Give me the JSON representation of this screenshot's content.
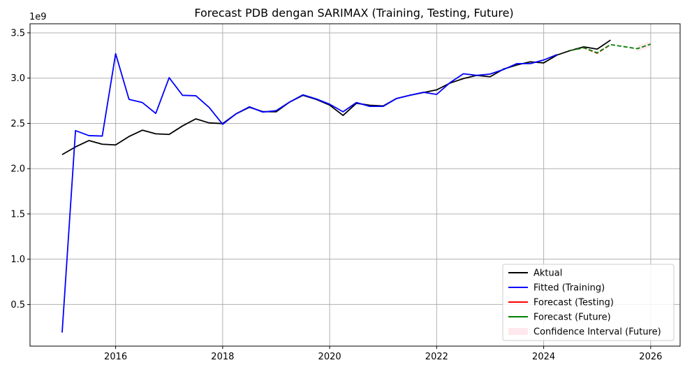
{
  "chart_data": {
    "type": "line",
    "title": "Forecast PDB dengan SARIMAX (Training, Testing, Future)",
    "xlabel": "",
    "ylabel": "",
    "y_scale_label": "1e9",
    "xlim": [
      2014.4,
      2026.55
    ],
    "ylim": [
      0.04,
      3.6
    ],
    "x_ticks": [
      2016,
      2018,
      2020,
      2022,
      2024,
      2026
    ],
    "x_tick_labels": [
      "2016",
      "2018",
      "2020",
      "2022",
      "2024",
      "2026"
    ],
    "y_ticks": [
      0.5,
      1.0,
      1.5,
      2.0,
      2.5,
      3.0,
      3.5
    ],
    "y_tick_labels": [
      "0.5",
      "1.0",
      "1.5",
      "2.0",
      "2.5",
      "3.0",
      "3.5"
    ],
    "grid": true,
    "legend_position": "bottom-right",
    "series": [
      {
        "name": "Aktual",
        "color": "#000000",
        "dash": "solid",
        "kind": "line",
        "points": [
          [
            2015.0,
            2.155
          ],
          [
            2015.25,
            2.24
          ],
          [
            2015.5,
            2.31
          ],
          [
            2015.75,
            2.27
          ],
          [
            2016.0,
            2.262
          ],
          [
            2016.25,
            2.355
          ],
          [
            2016.5,
            2.425
          ],
          [
            2016.75,
            2.385
          ],
          [
            2017.0,
            2.378
          ],
          [
            2017.25,
            2.472
          ],
          [
            2017.5,
            2.55
          ],
          [
            2017.75,
            2.505
          ],
          [
            2018.0,
            2.498
          ],
          [
            2018.25,
            2.605
          ],
          [
            2018.5,
            2.678
          ],
          [
            2018.75,
            2.63
          ],
          [
            2019.0,
            2.628
          ],
          [
            2019.25,
            2.735
          ],
          [
            2019.5,
            2.81
          ],
          [
            2019.75,
            2.765
          ],
          [
            2020.0,
            2.702
          ],
          [
            2020.25,
            2.588
          ],
          [
            2020.5,
            2.722
          ],
          [
            2020.75,
            2.7
          ],
          [
            2021.0,
            2.692
          ],
          [
            2021.25,
            2.775
          ],
          [
            2021.5,
            2.81
          ],
          [
            2021.75,
            2.84
          ],
          [
            2022.0,
            2.87
          ],
          [
            2022.25,
            2.945
          ],
          [
            2022.5,
            2.995
          ],
          [
            2022.75,
            3.03
          ],
          [
            2023.0,
            3.015
          ],
          [
            2023.25,
            3.1
          ],
          [
            2023.5,
            3.145
          ],
          [
            2023.75,
            3.18
          ],
          [
            2024.0,
            3.168
          ],
          [
            2024.25,
            3.255
          ],
          [
            2024.5,
            3.305
          ],
          [
            2024.75,
            3.345
          ],
          [
            2025.0,
            3.32
          ],
          [
            2025.25,
            3.42
          ]
        ]
      },
      {
        "name": "Fitted (Training)",
        "color": "#0000ff",
        "dash": "solid",
        "kind": "line",
        "points": [
          [
            2015.0,
            0.19
          ],
          [
            2015.25,
            2.42
          ],
          [
            2015.5,
            2.365
          ],
          [
            2015.75,
            2.36
          ],
          [
            2016.0,
            3.27
          ],
          [
            2016.25,
            2.765
          ],
          [
            2016.5,
            2.73
          ],
          [
            2016.75,
            2.61
          ],
          [
            2017.0,
            3.005
          ],
          [
            2017.25,
            2.81
          ],
          [
            2017.5,
            2.805
          ],
          [
            2017.75,
            2.675
          ],
          [
            2018.0,
            2.49
          ],
          [
            2018.25,
            2.605
          ],
          [
            2018.5,
            2.683
          ],
          [
            2018.75,
            2.625
          ],
          [
            2019.0,
            2.64
          ],
          [
            2019.25,
            2.735
          ],
          [
            2019.5,
            2.815
          ],
          [
            2019.75,
            2.77
          ],
          [
            2020.0,
            2.712
          ],
          [
            2020.25,
            2.628
          ],
          [
            2020.5,
            2.73
          ],
          [
            2020.75,
            2.688
          ],
          [
            2021.0,
            2.688
          ],
          [
            2021.25,
            2.775
          ],
          [
            2021.5,
            2.81
          ],
          [
            2021.75,
            2.843
          ],
          [
            2022.0,
            2.82
          ],
          [
            2022.25,
            2.95
          ],
          [
            2022.5,
            3.048
          ],
          [
            2022.75,
            3.03
          ],
          [
            2023.0,
            3.045
          ],
          [
            2023.25,
            3.095
          ],
          [
            2023.5,
            3.16
          ],
          [
            2023.75,
            3.16
          ],
          [
            2024.0,
            3.2
          ],
          [
            2024.25,
            3.26
          ]
        ]
      },
      {
        "name": "Forecast (Testing)",
        "color": "#ff0000",
        "dash": "dashed",
        "kind": "line",
        "points": [
          [
            2024.5,
            3.305
          ],
          [
            2024.75,
            3.335
          ],
          [
            2025.0,
            3.275
          ],
          [
            2025.25,
            3.37
          ]
        ]
      },
      {
        "name": "Forecast (Future)",
        "color": "#008000",
        "dash": "dashed",
        "kind": "line",
        "points": [
          [
            2024.5,
            3.305
          ],
          [
            2024.75,
            3.335
          ],
          [
            2025.0,
            3.28
          ],
          [
            2025.25,
            3.37
          ],
          [
            2025.75,
            3.325
          ],
          [
            2026.0,
            3.375
          ]
        ]
      },
      {
        "name": "Confidence Interval (Future)",
        "color": "#ffc0cb",
        "kind": "band",
        "lower": [
          [
            2025.75,
            3.29
          ],
          [
            2026.0,
            3.345
          ]
        ],
        "upper": [
          [
            2025.75,
            3.36
          ],
          [
            2026.0,
            3.405
          ]
        ]
      }
    ]
  }
}
